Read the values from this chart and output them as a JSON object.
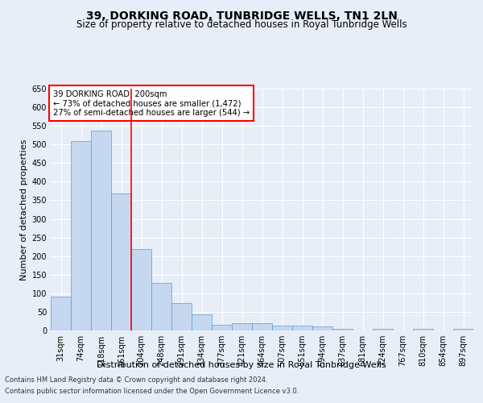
{
  "title": "39, DORKING ROAD, TUNBRIDGE WELLS, TN1 2LN",
  "subtitle": "Size of property relative to detached houses in Royal Tunbridge Wells",
  "xlabel": "Distribution of detached houses by size in Royal Tunbridge Wells",
  "ylabel": "Number of detached properties",
  "footnote1": "Contains HM Land Registry data © Crown copyright and database right 2024.",
  "footnote2": "Contains public sector information licensed under the Open Government Licence v3.0.",
  "annotation_line1": "39 DORKING ROAD: 200sqm",
  "annotation_line2": "← 73% of detached houses are smaller (1,472)",
  "annotation_line3": "27% of semi-detached houses are larger (544) →",
  "categories": [
    "31sqm",
    "74sqm",
    "118sqm",
    "161sqm",
    "204sqm",
    "248sqm",
    "291sqm",
    "334sqm",
    "377sqm",
    "421sqm",
    "464sqm",
    "507sqm",
    "551sqm",
    "594sqm",
    "637sqm",
    "681sqm",
    "724sqm",
    "767sqm",
    "810sqm",
    "854sqm",
    "897sqm"
  ],
  "values": [
    92,
    509,
    537,
    369,
    219,
    128,
    73,
    43,
    16,
    20,
    20,
    12,
    12,
    10,
    5,
    0,
    5,
    0,
    4,
    0,
    4
  ],
  "bar_color": "#c5d8f0",
  "bar_edge_color": "#5b9bd5",
  "red_line_index": 4,
  "ylim": [
    0,
    650
  ],
  "yticks": [
    0,
    50,
    100,
    150,
    200,
    250,
    300,
    350,
    400,
    450,
    500,
    550,
    600,
    650
  ],
  "background_color": "#e8eef8",
  "grid_color": "#ffffff",
  "title_fontsize": 10,
  "subtitle_fontsize": 8.5,
  "axis_label_fontsize": 8,
  "tick_fontsize": 7
}
